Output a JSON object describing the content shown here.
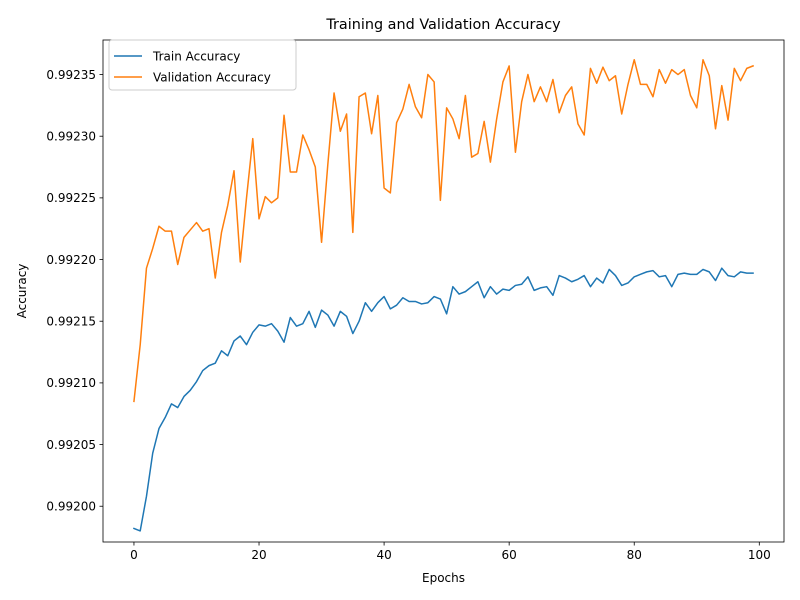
{
  "chart_data": {
    "type": "line",
    "title": "Training and Validation Accuracy",
    "xlabel": "Epochs",
    "ylabel": "Accuracy",
    "xlim": [
      -4.95,
      103.95
    ],
    "ylim": [
      0.991971,
      0.992378
    ],
    "x_ticks": [
      0,
      20,
      40,
      60,
      80,
      100
    ],
    "x_tick_labels": [
      "0",
      "20",
      "40",
      "60",
      "80",
      "100"
    ],
    "y_ticks": [
      0.992,
      0.99205,
      0.9921,
      0.99215,
      0.9922,
      0.99225,
      0.9923,
      0.99235
    ],
    "y_tick_labels": [
      "0.99200",
      "0.99205",
      "0.99210",
      "0.99215",
      "0.99220",
      "0.99225",
      "0.99230",
      "0.99235"
    ],
    "grid": false,
    "legend_position": "upper-left",
    "series": [
      {
        "name": "Train Accuracy",
        "color": "#1f77b4",
        "x": [
          0,
          1,
          2,
          3,
          4,
          5,
          6,
          7,
          8,
          9,
          10,
          11,
          12,
          13,
          14,
          15,
          16,
          17,
          18,
          19,
          20,
          21,
          22,
          23,
          24,
          25,
          26,
          27,
          28,
          29,
          30,
          31,
          32,
          33,
          34,
          35,
          36,
          37,
          38,
          39,
          40,
          41,
          42,
          43,
          44,
          45,
          46,
          47,
          48,
          49,
          50,
          51,
          52,
          53,
          54,
          55,
          56,
          57,
          58,
          59,
          60,
          61,
          62,
          63,
          64,
          65,
          66,
          67,
          68,
          69,
          70,
          71,
          72,
          73,
          74,
          75,
          76,
          77,
          78,
          79,
          80,
          81,
          82,
          83,
          84,
          85,
          86,
          87,
          88,
          89,
          90,
          91,
          92,
          93,
          94,
          95,
          96,
          97,
          98,
          99
        ],
        "values": [
          0.991982,
          0.99198,
          0.992008,
          0.992043,
          0.992063,
          0.992072,
          0.992083,
          0.99208,
          0.992089,
          0.992094,
          0.992101,
          0.99211,
          0.992114,
          0.992116,
          0.992126,
          0.992122,
          0.992134,
          0.992138,
          0.992131,
          0.992141,
          0.992147,
          0.992146,
          0.992148,
          0.992142,
          0.992133,
          0.992153,
          0.992146,
          0.992148,
          0.992158,
          0.992145,
          0.992159,
          0.992155,
          0.992146,
          0.992158,
          0.992154,
          0.99214,
          0.99215,
          0.992165,
          0.992158,
          0.992165,
          0.99217,
          0.99216,
          0.992163,
          0.992169,
          0.992166,
          0.992166,
          0.992164,
          0.992165,
          0.99217,
          0.992168,
          0.992156,
          0.992178,
          0.992172,
          0.992174,
          0.992178,
          0.992182,
          0.992169,
          0.992178,
          0.992172,
          0.992176,
          0.992175,
          0.992179,
          0.99218,
          0.992186,
          0.992175,
          0.992177,
          0.992178,
          0.992171,
          0.992187,
          0.992185,
          0.992182,
          0.992184,
          0.992187,
          0.992178,
          0.992185,
          0.992181,
          0.992192,
          0.992187,
          0.992179,
          0.992181,
          0.992186,
          0.992188,
          0.99219,
          0.992191,
          0.992186,
          0.992187,
          0.992178,
          0.992188,
          0.992189,
          0.992188,
          0.992188,
          0.992192,
          0.99219,
          0.992183,
          0.992193,
          0.992187,
          0.992186,
          0.99219,
          0.992189,
          0.992189
        ]
      },
      {
        "name": "Validation Accuracy",
        "color": "#ff7f0e",
        "x": [
          0,
          1,
          2,
          3,
          4,
          5,
          6,
          7,
          8,
          9,
          10,
          11,
          12,
          13,
          14,
          15,
          16,
          17,
          18,
          19,
          20,
          21,
          22,
          23,
          24,
          25,
          26,
          27,
          28,
          29,
          30,
          31,
          32,
          33,
          34,
          35,
          36,
          37,
          38,
          39,
          40,
          41,
          42,
          43,
          44,
          45,
          46,
          47,
          48,
          49,
          50,
          51,
          52,
          53,
          54,
          55,
          56,
          57,
          58,
          59,
          60,
          61,
          62,
          63,
          64,
          65,
          66,
          67,
          68,
          69,
          70,
          71,
          72,
          73,
          74,
          75,
          76,
          77,
          78,
          79,
          80,
          81,
          82,
          83,
          84,
          85,
          86,
          87,
          88,
          89,
          90,
          91,
          92,
          93,
          94,
          95,
          96,
          97,
          98,
          99
        ],
        "values": [
          0.992085,
          0.992131,
          0.992193,
          0.992209,
          0.992227,
          0.992223,
          0.992223,
          0.992196,
          0.992218,
          0.992224,
          0.99223,
          0.992223,
          0.992225,
          0.992185,
          0.992222,
          0.992244,
          0.992272,
          0.992198,
          0.99225,
          0.992298,
          0.992233,
          0.992251,
          0.992246,
          0.99225,
          0.992317,
          0.992271,
          0.992271,
          0.992301,
          0.992289,
          0.992275,
          0.992214,
          0.992277,
          0.992335,
          0.992304,
          0.992318,
          0.992222,
          0.992332,
          0.992335,
          0.992302,
          0.992333,
          0.992258,
          0.992254,
          0.992311,
          0.992322,
          0.992342,
          0.992324,
          0.992315,
          0.99235,
          0.992344,
          0.992248,
          0.992323,
          0.992314,
          0.992298,
          0.992333,
          0.992283,
          0.992286,
          0.992312,
          0.992279,
          0.992314,
          0.992344,
          0.992357,
          0.992287,
          0.992328,
          0.99235,
          0.992328,
          0.99234,
          0.992328,
          0.992346,
          0.992319,
          0.992333,
          0.99234,
          0.99231,
          0.992301,
          0.992355,
          0.992343,
          0.992356,
          0.992345,
          0.992349,
          0.992318,
          0.992342,
          0.992362,
          0.992342,
          0.992342,
          0.992332,
          0.992354,
          0.992343,
          0.992354,
          0.99235,
          0.992354,
          0.992333,
          0.992323,
          0.992362,
          0.992349,
          0.992306,
          0.992341,
          0.992313,
          0.992355,
          0.992345,
          0.992355,
          0.992357
        ]
      }
    ]
  }
}
